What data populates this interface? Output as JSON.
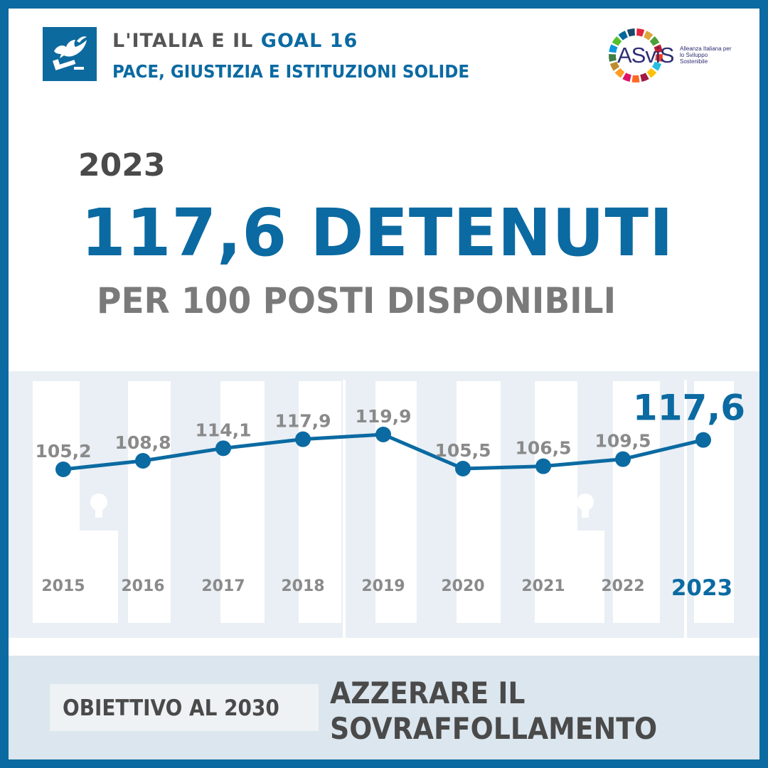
{
  "header": {
    "line1_prefix": "L'ITALIA E IL ",
    "line1_goal": "GOAL 16",
    "line2": "PACE, GIUSTIZIA E ISTITUZIONI SOLIDE",
    "goal_icon": "dove-gavel-icon",
    "logo_word": "ASviS",
    "logo_sub": "Alleanza Italiana per lo Sviluppo Sostenibile"
  },
  "headline": {
    "year": "2023",
    "value": "117,6 DETENUTI",
    "subtitle": "PER 100 POSTI DISPONIBILI"
  },
  "chart_data": {
    "type": "line",
    "x": [
      "2015",
      "2016",
      "2017",
      "2018",
      "2019",
      "2020",
      "2021",
      "2022",
      "2023"
    ],
    "values": [
      105.2,
      108.8,
      114.1,
      117.9,
      119.9,
      105.5,
      106.5,
      109.5,
      117.6
    ],
    "data_labels": [
      "105,2",
      "108,8",
      "114,1",
      "117,9",
      "119,9",
      "105,5",
      "106,5",
      "109,5",
      "117,6"
    ],
    "highlight": "2023",
    "grid": false,
    "legend": "none",
    "colors": {
      "line": "#0b6aa2",
      "label": "#8a8a8a",
      "highlight": "#0b6aa2",
      "year": "#8a8a8a"
    }
  },
  "footer": {
    "goal_label": "OBIETTIVO AL 2030",
    "goal_line1": "AZZERARE IL",
    "goal_line2": "SOVRAFFOLLAMENTO"
  },
  "colors": {
    "frame": "#0b6aa2",
    "accent": "#0b6aa2",
    "dark_text": "#4a4a4a",
    "footer_bg": "#dbe6ee"
  }
}
